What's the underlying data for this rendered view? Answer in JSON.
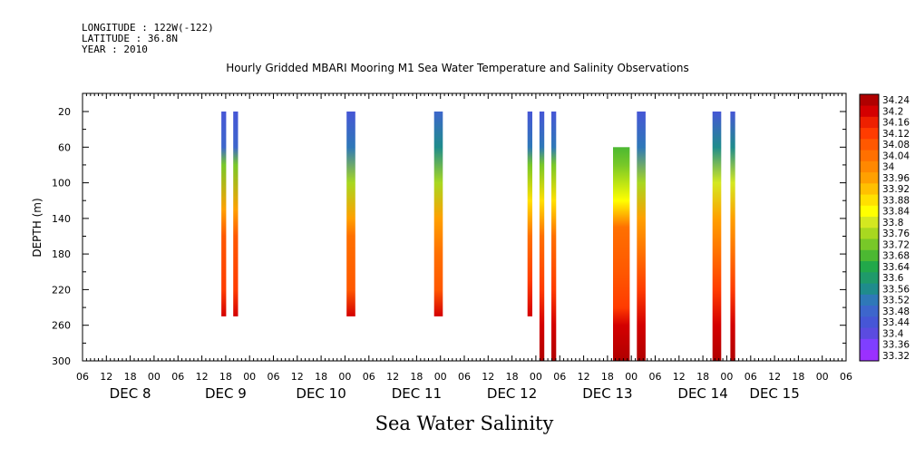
{
  "meta": {
    "longitude": "LONGITUDE : 122W(-122)",
    "latitude": "LATITUDE : 36.8N",
    "year": "YEAR : 2010"
  },
  "chart_data": {
    "type": "heatmap",
    "title": "Hourly Gridded MBARI Mooring M1 Sea Water Temperature and Salinity Observations",
    "xlabel": "Sea Water Salinity",
    "ylabel": "DEPTH (m)",
    "x_unit": "hours since Dec 8 00:00",
    "xlim": [
      -18,
      174
    ],
    "ylim": [
      300,
      0
    ],
    "yticks": [
      20,
      60,
      100,
      140,
      180,
      220,
      260,
      300
    ],
    "hour_ticks": [
      {
        "h": -18,
        "label": "06"
      },
      {
        "h": -12,
        "label": "12"
      },
      {
        "h": -6,
        "label": "18"
      },
      {
        "h": 0,
        "label": "00"
      },
      {
        "h": 6,
        "label": "06"
      },
      {
        "h": 12,
        "label": "12"
      },
      {
        "h": 18,
        "label": "18"
      },
      {
        "h": 24,
        "label": "00"
      },
      {
        "h": 30,
        "label": "06"
      },
      {
        "h": 36,
        "label": "12"
      },
      {
        "h": 42,
        "label": "18"
      },
      {
        "h": 48,
        "label": "00"
      },
      {
        "h": 54,
        "label": "06"
      },
      {
        "h": 60,
        "label": "12"
      },
      {
        "h": 66,
        "label": "18"
      },
      {
        "h": 72,
        "label": "00"
      },
      {
        "h": 78,
        "label": "06"
      },
      {
        "h": 84,
        "label": "12"
      },
      {
        "h": 90,
        "label": "18"
      },
      {
        "h": 96,
        "label": "00"
      },
      {
        "h": 102,
        "label": "06"
      },
      {
        "h": 108,
        "label": "12"
      },
      {
        "h": 114,
        "label": "18"
      },
      {
        "h": 120,
        "label": "00"
      },
      {
        "h": 126,
        "label": "06"
      },
      {
        "h": 132,
        "label": "12"
      },
      {
        "h": 138,
        "label": "18"
      },
      {
        "h": 144,
        "label": "00"
      },
      {
        "h": 150,
        "label": "06"
      },
      {
        "h": 156,
        "label": "12"
      },
      {
        "h": 162,
        "label": "18"
      },
      {
        "h": 168,
        "label": "00"
      },
      {
        "h": 174,
        "label": "06"
      }
    ],
    "date_labels": [
      {
        "h": -6,
        "label": "DEC  8"
      },
      {
        "h": 18,
        "label": "DEC  9"
      },
      {
        "h": 42,
        "label": "DEC 10"
      },
      {
        "h": 66,
        "label": "DEC 11"
      },
      {
        "h": 90,
        "label": "DEC 12"
      },
      {
        "h": 114,
        "label": "DEC 13"
      },
      {
        "h": 138,
        "label": "DEC 14"
      },
      {
        "h": 156,
        "label": "DEC 15"
      }
    ],
    "color_levels": [
      "33.32",
      "33.36",
      "33.4",
      "33.44",
      "33.48",
      "33.52",
      "33.56",
      "33.6",
      "33.64",
      "33.68",
      "33.72",
      "33.76",
      "33.8",
      "33.84",
      "33.88",
      "33.92",
      "33.96",
      "34",
      "34.04",
      "34.08",
      "34.12",
      "34.16",
      "34.2",
      "34.24"
    ],
    "colors": [
      "#9b30ff",
      "#7f3fff",
      "#5b4be0",
      "#4656d6",
      "#3d66cc",
      "#2f78b8",
      "#1f8c8c",
      "#1f9a6a",
      "#22a84a",
      "#4cb832",
      "#78c828",
      "#a8d820",
      "#d4e820",
      "#ffff00",
      "#ffe000",
      "#ffc000",
      "#ffa000",
      "#ff8800",
      "#ff7000",
      "#ff5800",
      "#ff3c00",
      "#ee2000",
      "#d40000",
      "#b00000"
    ],
    "profiles": [
      {
        "h": 17.5,
        "w": 1.2,
        "top": 20,
        "bottom": 250,
        "depths": [
          20,
          60,
          80,
          130,
          160,
          220,
          250
        ],
        "values": [
          33.45,
          33.5,
          33.72,
          33.96,
          34.06,
          34.14,
          34.22
        ]
      },
      {
        "h": 20.5,
        "w": 1.2,
        "top": 20,
        "bottom": 250,
        "depths": [
          20,
          60,
          80,
          130,
          160,
          220,
          250
        ],
        "values": [
          33.45,
          33.5,
          33.72,
          33.96,
          34.06,
          34.14,
          34.22
        ]
      },
      {
        "h": 49.5,
        "w": 2.2,
        "top": 20,
        "bottom": 250,
        "depths": [
          20,
          60,
          100,
          140,
          160,
          220,
          250
        ],
        "values": [
          33.45,
          33.52,
          33.75,
          33.98,
          34.04,
          34.1,
          34.2
        ]
      },
      {
        "h": 71.5,
        "w": 2.2,
        "top": 20,
        "bottom": 250,
        "depths": [
          20,
          60,
          100,
          140,
          180,
          220,
          250
        ],
        "values": [
          33.46,
          33.55,
          33.75,
          33.96,
          34.04,
          34.1,
          34.2
        ]
      },
      {
        "h": 94.5,
        "w": 1.2,
        "top": 20,
        "bottom": 250,
        "depths": [
          20,
          60,
          80,
          120,
          160,
          210,
          250
        ],
        "values": [
          33.45,
          33.52,
          33.72,
          33.9,
          34.04,
          34.12,
          34.2
        ]
      },
      {
        "h": 97.5,
        "w": 1.2,
        "top": 20,
        "bottom": 300,
        "depths": [
          20,
          60,
          80,
          120,
          160,
          220,
          260,
          300
        ],
        "values": [
          33.45,
          33.52,
          33.72,
          33.9,
          34.04,
          34.12,
          34.2,
          34.24
        ]
      },
      {
        "h": 100.5,
        "w": 1.2,
        "top": 20,
        "bottom": 300,
        "depths": [
          20,
          60,
          80,
          120,
          160,
          220,
          260,
          300
        ],
        "values": [
          33.45,
          33.52,
          33.72,
          33.9,
          34.04,
          34.12,
          34.2,
          34.24
        ]
      },
      {
        "h": 117.5,
        "w": 4.2,
        "top": 60,
        "bottom": 300,
        "depths": [
          60,
          80,
          120,
          150,
          200,
          240,
          260,
          300
        ],
        "values": [
          33.68,
          33.72,
          33.86,
          34.02,
          34.06,
          34.14,
          34.22,
          34.24
        ]
      },
      {
        "h": 122.5,
        "w": 2.2,
        "top": 20,
        "bottom": 300,
        "depths": [
          20,
          60,
          100,
          140,
          180,
          220,
          260,
          300
        ],
        "values": [
          33.45,
          33.52,
          33.76,
          33.98,
          34.05,
          34.12,
          34.22,
          34.24
        ]
      },
      {
        "h": 141.5,
        "w": 2.2,
        "top": 20,
        "bottom": 300,
        "depths": [
          20,
          60,
          100,
          140,
          180,
          220,
          260,
          300
        ],
        "values": [
          33.45,
          33.55,
          33.78,
          33.97,
          34.05,
          34.12,
          34.22,
          34.24
        ]
      },
      {
        "h": 145.5,
        "w": 1.2,
        "top": 20,
        "bottom": 300,
        "depths": [
          20,
          60,
          100,
          140,
          180,
          220,
          260,
          300
        ],
        "values": [
          33.45,
          33.55,
          33.78,
          33.97,
          34.05,
          34.12,
          34.2,
          34.24
        ]
      }
    ]
  }
}
